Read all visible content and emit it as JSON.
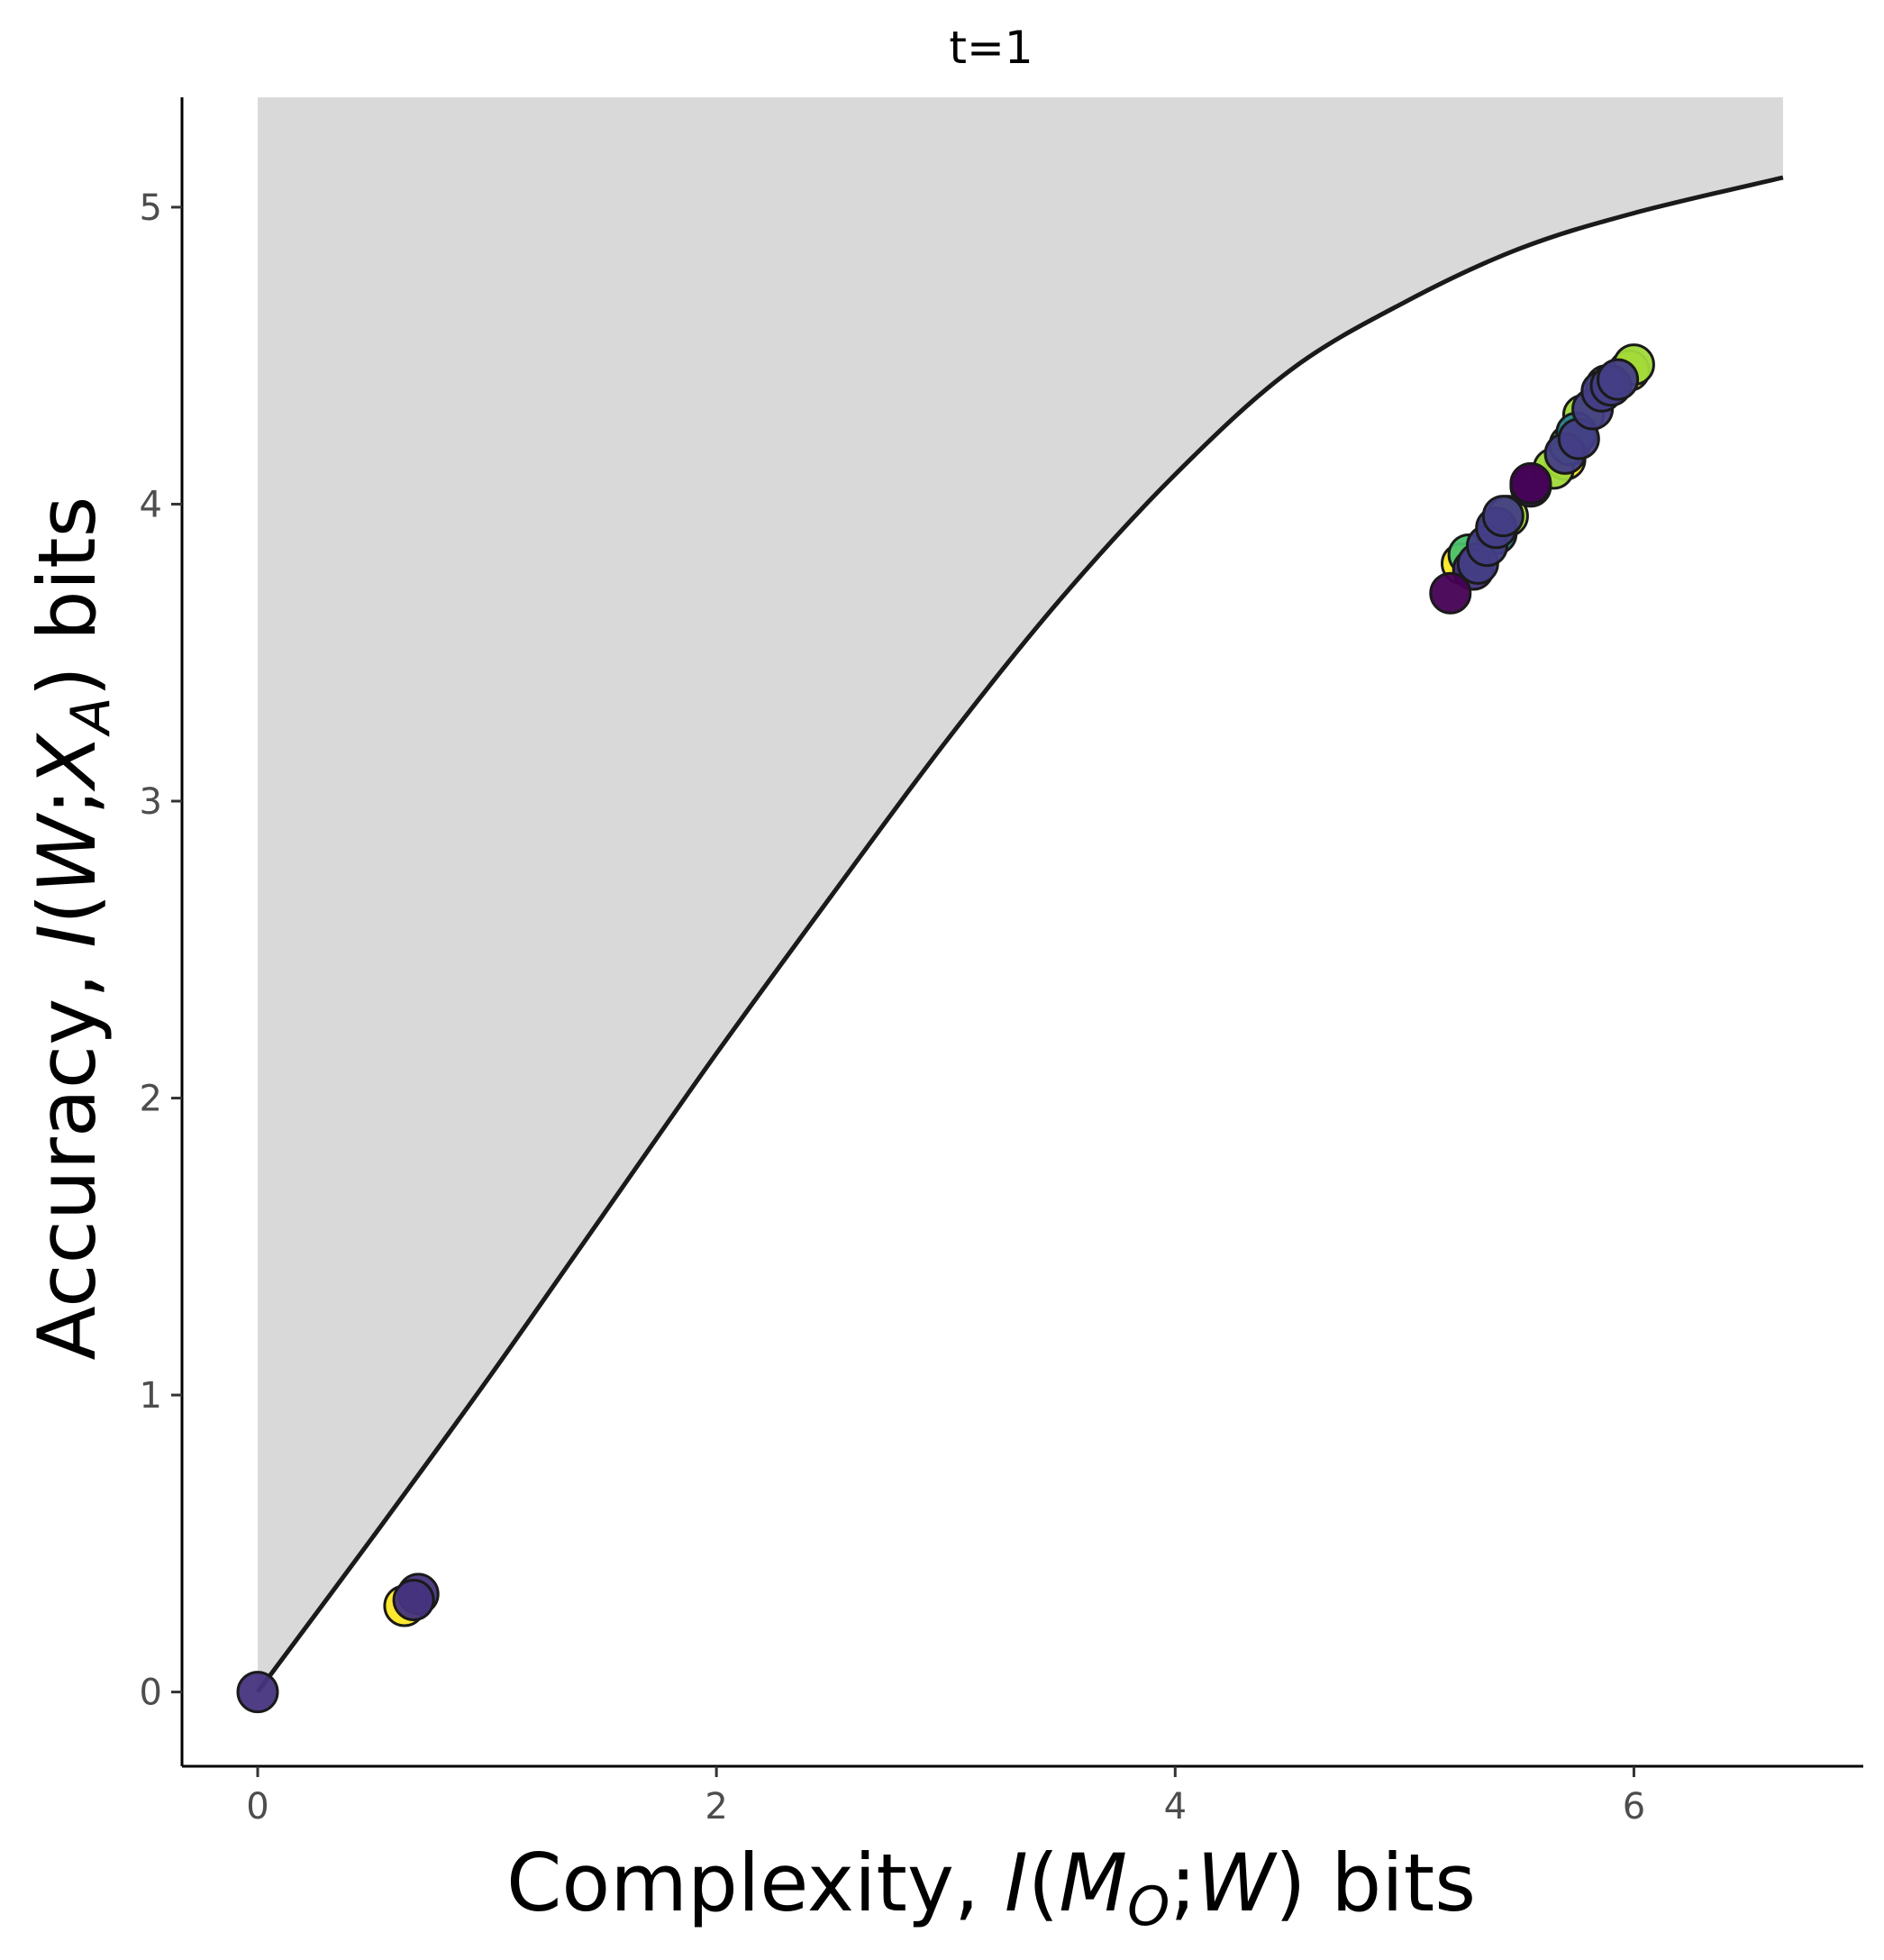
{
  "chart_data": {
    "type": "scatter",
    "title": "t=1",
    "xlabel": {
      "prefix": "Complexity, ",
      "var1": "I",
      "open": "(",
      "var2": "M",
      "var2_sub": "O",
      "sep": ";",
      "var3": "W",
      "close": ")",
      "suffix": " bits"
    },
    "ylabel": {
      "prefix": "Accuracy, ",
      "var1": "I",
      "open": "(",
      "var2": "W",
      "sep": ";",
      "var3": "X",
      "var3_sub": "A",
      "close": ")",
      "suffix": " bits"
    },
    "xlim": [
      -0.33,
      7.0
    ],
    "ylim": [
      -0.25,
      5.37
    ],
    "x_ticks": [
      0,
      2,
      4,
      6
    ],
    "y_ticks": [
      0,
      1,
      2,
      3,
      4,
      5
    ],
    "grid": false,
    "legend": "none",
    "colors": {
      "bound_line": "#1a1a1a",
      "unachievable_region": "#d9d9d9",
      "axis": "#000000",
      "point_outline": "#1a1a1a"
    },
    "bound_curve": [
      [
        0,
        0
      ],
      [
        0.5,
        0.52
      ],
      [
        1.0,
        1.05
      ],
      [
        1.5,
        1.6
      ],
      [
        2.0,
        2.15
      ],
      [
        2.5,
        2.68
      ],
      [
        3.0,
        3.2
      ],
      [
        3.5,
        3.68
      ],
      [
        4.0,
        4.1
      ],
      [
        4.5,
        4.45
      ],
      [
        5.0,
        4.68
      ],
      [
        5.5,
        4.86
      ],
      [
        6.0,
        4.98
      ],
      [
        6.65,
        5.1
      ]
    ],
    "series": [
      {
        "color": "#fde725",
        "points": [
          [
            0.64,
            0.29
          ],
          [
            5.98,
            4.45
          ],
          [
            5.25,
            3.8
          ],
          [
            5.7,
            4.15
          ]
        ]
      },
      {
        "color": "#a0da39",
        "points": [
          [
            6.0,
            4.47
          ],
          [
            5.45,
            3.96
          ],
          [
            5.65,
            4.12
          ],
          [
            5.78,
            4.3
          ]
        ]
      },
      {
        "color": "#4ac16d",
        "points": [
          [
            5.28,
            3.83
          ],
          [
            5.72,
            4.2
          ],
          [
            5.88,
            4.4
          ]
        ]
      },
      {
        "color": "#277f8e",
        "points": [
          [
            5.75,
            4.24
          ],
          [
            5.4,
            3.9
          ]
        ]
      },
      {
        "color": "#46337e",
        "points": [
          [
            0,
            0
          ],
          [
            0.7,
            0.33
          ],
          [
            0.68,
            0.31
          ],
          [
            5.55,
            4.06
          ],
          [
            5.3,
            3.78
          ]
        ]
      },
      {
        "color": "#440154",
        "points": [
          [
            5.2,
            3.7
          ],
          [
            5.55,
            4.07
          ]
        ]
      },
      {
        "color": "#433e85",
        "points": [
          [
            5.32,
            3.8
          ],
          [
            5.36,
            3.86
          ],
          [
            5.4,
            3.92
          ],
          [
            5.43,
            3.96
          ],
          [
            5.7,
            4.17
          ],
          [
            5.76,
            4.22
          ],
          [
            5.82,
            4.32
          ],
          [
            5.86,
            4.38
          ],
          [
            5.9,
            4.4
          ],
          [
            5.93,
            4.42
          ]
        ]
      }
    ]
  }
}
